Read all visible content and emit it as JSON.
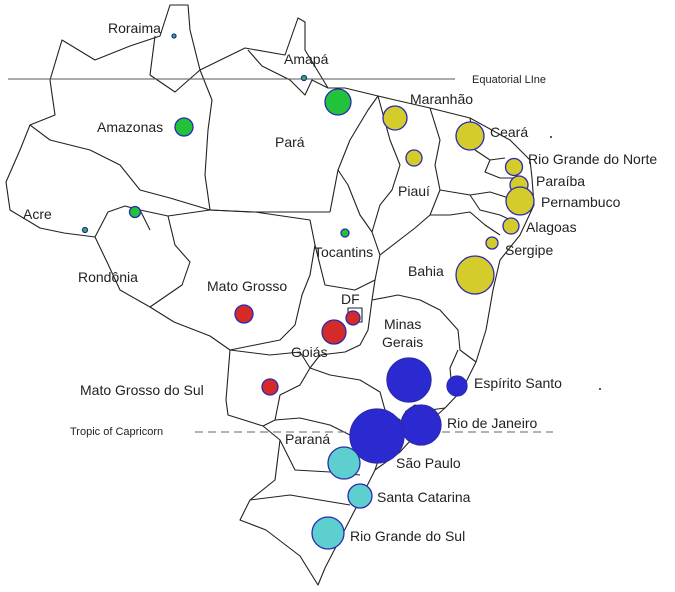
{
  "reference_lines": {
    "equator_label": "Equatorial LIne",
    "tropic_label": "Tropic of Capricorn"
  },
  "states": {
    "roraima": "Roraima",
    "amapa": "Amapá",
    "amazonas": "Amazonas",
    "para": "Pará",
    "maranhao": "Maranhão",
    "ceara": "Ceará",
    "rio_grande_do_norte": "Rio Grande do Norte",
    "paraiba": "Paraíba",
    "pernambuco": "Pernambuco",
    "alagoas": "Alagoas",
    "sergipe": "Sergipe",
    "piaui": "Piauí",
    "acre": "Acre",
    "rondonia": "Rondônia",
    "tocantins": "Tocantins",
    "bahia": "Bahia",
    "mato_grosso": "Mato Grosso",
    "df": "DF",
    "goias": "Goiás",
    "minas_gerais_line1": "Minas",
    "minas_gerais_line2": "Gerais",
    "mato_grosso_do_sul": "Mato Grosso do Sul",
    "espirito_santo": "Espírito Santo",
    "rio_de_janeiro": "Rio de Janeiro",
    "sao_paulo": "São Paulo",
    "parana": "Paraná",
    "santa_catarina": "Santa Catarina",
    "rio_grande_do_sul": "Rio Grande do Sul"
  },
  "colors": {
    "north": "#22c23a",
    "northeast": "#d4cc2a",
    "center_west": "#d42a2a",
    "southeast": "#2a2ad0",
    "south": "#5ecfcf",
    "bubble_outline": "#2a2ab0"
  }
}
